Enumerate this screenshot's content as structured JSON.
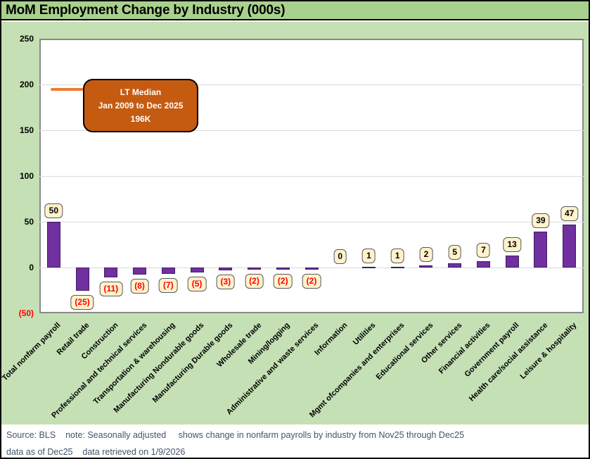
{
  "title": "MoM Employment Change by Industry (000s)",
  "colors": {
    "title_band": "#A9D18E",
    "chart_background": "#C5E0B4",
    "bar": "#7030A0",
    "bar_border": "#3F1D63",
    "gridline": "#D9D9D9",
    "data_label_box": "#FFF2CC",
    "data_label_border": "#595959",
    "negative_text": "#FF0000",
    "median_line": "#ED7D31",
    "annotation_box": "#C55A11",
    "footer_text": "#44546A"
  },
  "annotation": {
    "lines": [
      "LT Median",
      "Jan 2009 to Dec 2025",
      "196K"
    ]
  },
  "chart_data": {
    "type": "bar",
    "title": "MoM Employment Change by Industry (000s)",
    "categories": [
      "Total nonfarm payroll",
      "Retail trade",
      "Construction",
      "Professional and technical services",
      "Transportation & warehousing",
      "Manufacturing Nondurable goods",
      "Manufacturing Durable goods",
      "Wholesale trade",
      "Mining/logging",
      "Administrative and waste services",
      "Information",
      "Utilities",
      "Mgmt ofcompanies and enterprises",
      "Educational services",
      "Other services",
      "Financial activities",
      "Government payroll",
      "Health care/social assistance",
      "Leisure & hospitality"
    ],
    "values": [
      50,
      -25,
      -11,
      -8,
      -7,
      -5,
      -3,
      -2,
      -2,
      -2,
      0,
      1,
      1,
      2,
      5,
      7,
      13,
      39,
      47
    ],
    "data_labels": [
      "50",
      "(25)",
      "(11)",
      "(8)",
      "(7)",
      "(5)",
      "(3)",
      "(2)",
      "(2)",
      "(2)",
      "0",
      "1",
      "1",
      "2",
      "5",
      "7",
      "13",
      "39",
      "47"
    ],
    "xlabel": "",
    "ylabel": "",
    "ylim": [
      -50,
      250
    ],
    "y_tick_values": [
      250,
      200,
      150,
      100,
      50,
      0,
      -50
    ],
    "y_tick_labels": [
      "250",
      "200",
      "150",
      "100",
      "50",
      "0",
      "(50)"
    ],
    "grid": true,
    "legend_position": "none",
    "median_line": {
      "value": 196,
      "label": "LT Median Jan 2009 to Dec 2025 196K",
      "color": "#ED7D31"
    }
  },
  "footer": {
    "line1": "Source: BLS    note: Seasonally adjusted     shows change in nonfarm payrolls by industry from Nov25 through Dec25",
    "line2": "data as of Dec25    data retrieved on 1/9/2026"
  }
}
